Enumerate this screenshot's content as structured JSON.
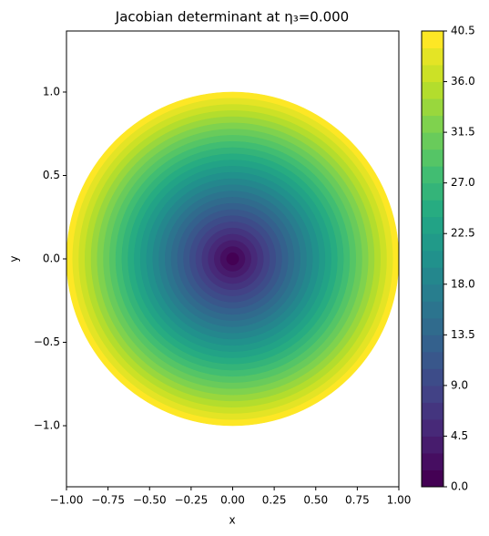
{
  "chart_data": {
    "type": "contour",
    "title": "Jacobian determinant at η₃=0.000",
    "x_label": "x",
    "y_label": "y",
    "xlim": [
      -1,
      1
    ],
    "ylim": [
      -1.366,
      1.366
    ],
    "xticks": [
      {
        "value": -1,
        "label": "−1.00"
      },
      {
        "value": -0.75,
        "label": "−0.75"
      },
      {
        "value": -0.5,
        "label": "−0.50"
      },
      {
        "value": -0.25,
        "label": "−0.25"
      },
      {
        "value": 0,
        "label": "0.00"
      },
      {
        "value": 0.25,
        "label": "0.25"
      },
      {
        "value": 0.5,
        "label": "0.50"
      },
      {
        "value": 0.75,
        "label": "0.75"
      },
      {
        "value": 1,
        "label": "1.00"
      }
    ],
    "yticks": [
      {
        "value": -1,
        "label": "−1.0"
      },
      {
        "value": -0.5,
        "label": "−0.5"
      },
      {
        "value": 0,
        "label": "0.0"
      },
      {
        "value": 0.5,
        "label": "0.5"
      },
      {
        "value": 1,
        "label": "1.0"
      }
    ],
    "levels": [
      0,
      1.5,
      3,
      4.5,
      6,
      7.5,
      9,
      10.5,
      12,
      13.5,
      15,
      16.5,
      18,
      19.5,
      21,
      22.5,
      24,
      25.5,
      27,
      28.5,
      30,
      31.5,
      33,
      34.5,
      36,
      37.5,
      39,
      40.5
    ],
    "radii": [
      0,
      0.037,
      0.074,
      0.111,
      0.148,
      0.185,
      0.222,
      0.259,
      0.296,
      0.333,
      0.37,
      0.407,
      0.444,
      0.481,
      0.519,
      0.556,
      0.593,
      0.63,
      0.667,
      0.704,
      0.741,
      0.778,
      0.815,
      0.852,
      0.889,
      0.926,
      0.963,
      1
    ],
    "colorbar_ticks": [
      {
        "value": 0,
        "label": "0.0"
      },
      4.5,
      {
        "value": 9,
        "label": "9.0"
      },
      13.5,
      {
        "value": 18,
        "label": "18.0"
      },
      22.5,
      {
        "value": 27,
        "label": "27.0"
      },
      31.5,
      {
        "value": 36,
        "label": "36.0"
      },
      40.5
    ],
    "colormap": [
      "#440154",
      "#482475",
      "#414487",
      "#355f8d",
      "#2a788e",
      "#21918c",
      "#22a884",
      "#44bf70",
      "#7ad151",
      "#bddf26",
      "#fde725"
    ]
  }
}
